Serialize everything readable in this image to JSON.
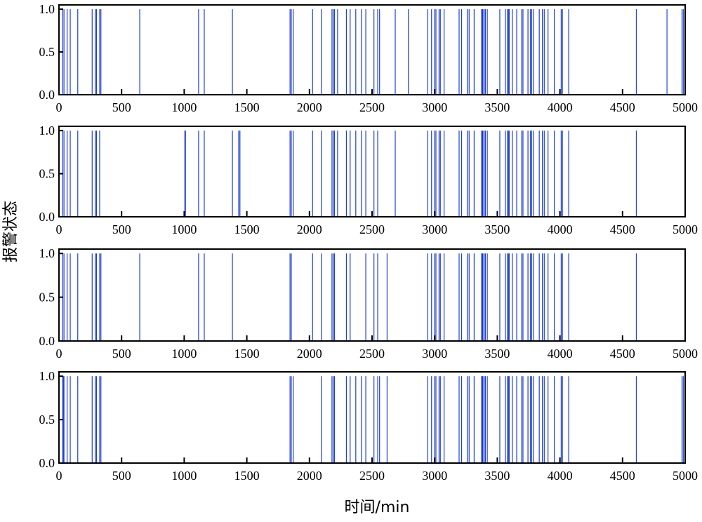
{
  "figure": {
    "ylabel": "报警状态",
    "xlabel": "时间/min",
    "bar_color": "#1f3fd1"
  },
  "chart_data": [
    {
      "type": "bar",
      "xlim": [
        0,
        5000
      ],
      "ylim": [
        0,
        1.05
      ],
      "x_ticks": [
        0,
        500,
        1000,
        1500,
        2000,
        2500,
        3000,
        3500,
        4000,
        4500,
        5000
      ],
      "y_ticks": [
        0.0,
        0.5,
        1.0
      ],
      "y_tick_labels": [
        "0.0",
        "0.5",
        "1.0"
      ],
      "alarm_times": [
        30,
        40,
        65,
        90,
        150,
        265,
        290,
        300,
        325,
        335,
        645,
        1115,
        1160,
        1385,
        1845,
        1855,
        1870,
        2025,
        2095,
        2180,
        2190,
        2200,
        2225,
        2295,
        2325,
        2370,
        2415,
        2450,
        2515,
        2545,
        2560,
        2685,
        2790,
        2945,
        2975,
        3000,
        3010,
        3035,
        3045,
        3075,
        3195,
        3215,
        3260,
        3275,
        3315,
        3375,
        3380,
        3385,
        3395,
        3405,
        3420,
        3520,
        3565,
        3580,
        3590,
        3595,
        3620,
        3655,
        3695,
        3705,
        3745,
        3765,
        3775,
        3790,
        3835,
        3860,
        3875,
        3905,
        3955,
        4010,
        4020,
        4070,
        4610,
        4855,
        4975,
        4985
      ],
      "alarm_value": 1.0
    },
    {
      "type": "bar",
      "xlim": [
        0,
        5000
      ],
      "ylim": [
        0,
        1.05
      ],
      "x_ticks": [
        0,
        500,
        1000,
        1500,
        2000,
        2500,
        3000,
        3500,
        4000,
        4500,
        5000
      ],
      "y_ticks": [
        0.0,
        0.5,
        1.0
      ],
      "y_tick_labels": [
        "0.0",
        "0.5",
        "1.0"
      ],
      "alarm_times": [
        30,
        40,
        65,
        90,
        150,
        265,
        290,
        300,
        325,
        1005,
        1010,
        1115,
        1160,
        1385,
        1435,
        1445,
        1845,
        1855,
        1870,
        2025,
        2095,
        2180,
        2190,
        2200,
        2225,
        2295,
        2325,
        2370,
        2415,
        2450,
        2515,
        2545,
        2685,
        2945,
        2975,
        3000,
        3010,
        3035,
        3045,
        3075,
        3195,
        3215,
        3260,
        3275,
        3315,
        3375,
        3380,
        3385,
        3395,
        3405,
        3420,
        3520,
        3565,
        3580,
        3590,
        3595,
        3620,
        3655,
        3695,
        3705,
        3745,
        3765,
        3775,
        3790,
        3835,
        3860,
        3875,
        3905,
        3955,
        4010,
        4020,
        4070,
        4610
      ],
      "alarm_value": 1.0
    },
    {
      "type": "bar",
      "xlim": [
        0,
        5000
      ],
      "ylim": [
        0,
        1.05
      ],
      "x_ticks": [
        0,
        500,
        1000,
        1500,
        2000,
        2500,
        3000,
        3500,
        4000,
        4500,
        5000
      ],
      "y_ticks": [
        0.0,
        0.5,
        1.0
      ],
      "y_tick_labels": [
        "0.0",
        "0.5",
        "1.0"
      ],
      "alarm_times": [
        30,
        40,
        65,
        90,
        150,
        265,
        290,
        300,
        325,
        335,
        645,
        1115,
        1160,
        1385,
        1845,
        1855,
        2025,
        2095,
        2180,
        2190,
        2200,
        2295,
        2325,
        2450,
        2515,
        2545,
        2620,
        2945,
        2975,
        3000,
        3010,
        3035,
        3045,
        3075,
        3195,
        3215,
        3260,
        3275,
        3315,
        3375,
        3380,
        3385,
        3395,
        3405,
        3420,
        3520,
        3565,
        3580,
        3590,
        3595,
        3620,
        3655,
        3695,
        3705,
        3745,
        3765,
        3775,
        3790,
        3835,
        3860,
        3875,
        3905,
        3955,
        4010,
        4020,
        4070,
        4610
      ],
      "alarm_value": 1.0
    },
    {
      "type": "bar",
      "xlim": [
        0,
        5000
      ],
      "ylim": [
        0,
        1.05
      ],
      "x_ticks": [
        0,
        500,
        1000,
        1500,
        2000,
        2500,
        3000,
        3500,
        4000,
        4500,
        5000
      ],
      "y_ticks": [
        0.0,
        0.5,
        1.0
      ],
      "y_tick_labels": [
        "0.0",
        "0.5",
        "1.0"
      ],
      "alarm_times": [
        30,
        35,
        40,
        65,
        90,
        150,
        265,
        290,
        300,
        325,
        335,
        1845,
        1855,
        1870,
        2095,
        2180,
        2190,
        2200,
        2295,
        2325,
        2370,
        2415,
        2450,
        2515,
        2545,
        2560,
        2620,
        2945,
        2975,
        3000,
        3010,
        3035,
        3045,
        3075,
        3195,
        3215,
        3260,
        3275,
        3315,
        3375,
        3380,
        3385,
        3395,
        3405,
        3420,
        3520,
        3565,
        3580,
        3590,
        3595,
        3620,
        3655,
        3695,
        3705,
        3745,
        3765,
        3775,
        3790,
        3835,
        3860,
        3875,
        3905,
        3955,
        4010,
        4020,
        4070,
        4610,
        4975,
        4985
      ],
      "alarm_value": 1.0
    }
  ]
}
